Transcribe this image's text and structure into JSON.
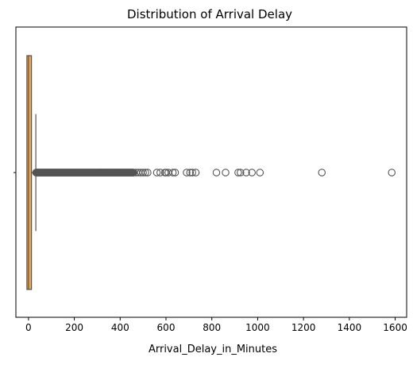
{
  "chart_data": {
    "type": "boxplot",
    "title": "Distribution of Arrival Delay",
    "xlabel": "Arrival_Delay_in_Minutes",
    "ylabel": "",
    "xlim": [
      -55,
      1650
    ],
    "orientation": "horizontal",
    "grid": false,
    "legend": "none",
    "xticks": [
      0,
      200,
      400,
      600,
      800,
      1000,
      1200,
      1400,
      1600
    ],
    "xtick_labels": [
      "0",
      "200",
      "400",
      "600",
      "800",
      "1000",
      "1200",
      "1400",
      "1600"
    ],
    "box": {
      "min": 0,
      "q1": 0,
      "median": 0,
      "q3": 13,
      "whisker_low": 0,
      "whisker_high": 32
    },
    "outlier_range": {
      "dense_from": 33,
      "dense_to": 460
    },
    "outliers_sparse": [
      470,
      480,
      490,
      500,
      510,
      520,
      560,
      575,
      595,
      600,
      610,
      630,
      640,
      690,
      705,
      715,
      730,
      820,
      860,
      915,
      925,
      950,
      975,
      1010,
      1280,
      1585
    ],
    "colors": {
      "box_fill": "#f5a64f",
      "box_edge": "#555555",
      "outlier_edge": "#555555",
      "axis": "#000000"
    }
  }
}
